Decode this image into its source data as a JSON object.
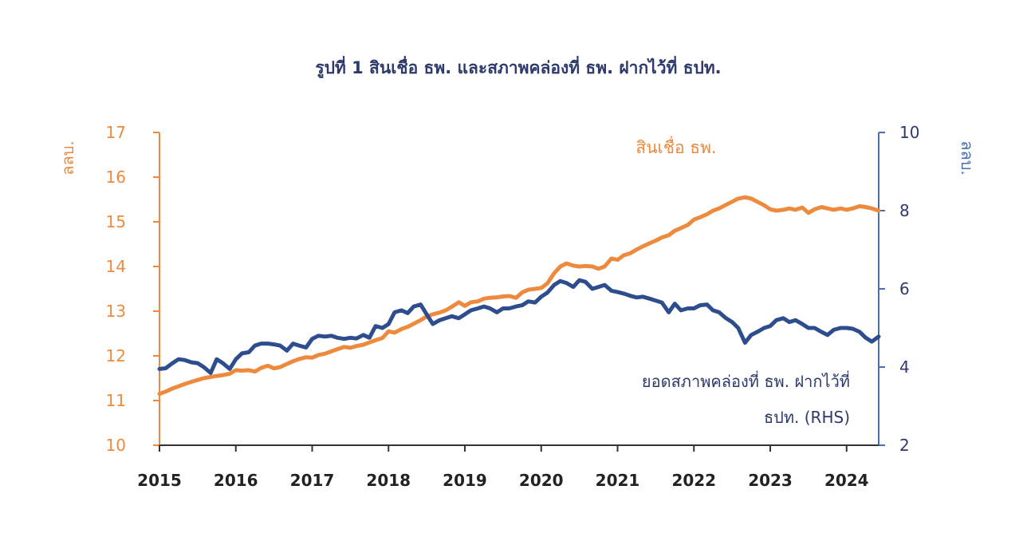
{
  "chart_data": {
    "type": "line",
    "title": "รูปที่ 1 สินเชื่อ ธพ. และสภาพคล่องที่ ธพ. ฝากไว้ที่ ธปท.",
    "y_left": {
      "label": "ลลบ.",
      "ticks": [
        "10",
        "11",
        "12",
        "13",
        "14",
        "15",
        "16",
        "17"
      ],
      "range": [
        10,
        17
      ]
    },
    "y_right": {
      "label": "ลลบ.",
      "ticks": [
        "2",
        "4",
        "6",
        "8",
        "10"
      ],
      "range": [
        2,
        10
      ]
    },
    "x": {
      "ticks": [
        "2015",
        "2016",
        "2017",
        "2018",
        "2019",
        "2020",
        "2021",
        "2022",
        "2023",
        "2024"
      ],
      "range": [
        2015,
        2024.42
      ]
    },
    "annotations": {
      "orange": "สินเชื่อ ธพ.",
      "blue_line1": "ยอดสภาพคล่องที่ ธพ. ฝากไว้ที่",
      "blue_line2": "ธปท. (RHS)"
    },
    "colors": {
      "orange": "#ed8a3d",
      "blue": "#2e4d8f",
      "axis_left": "#ed8a3d",
      "axis_right": "#4a6fb0"
    },
    "series": [
      {
        "axis": "left",
        "color": "#ed8a3d",
        "points": [
          [
            2015.0,
            11.15
          ],
          [
            2015.08,
            11.2
          ],
          [
            2015.17,
            11.27
          ],
          [
            2015.25,
            11.32
          ],
          [
            2015.33,
            11.37
          ],
          [
            2015.42,
            11.42
          ],
          [
            2015.5,
            11.46
          ],
          [
            2015.58,
            11.5
          ],
          [
            2015.67,
            11.53
          ],
          [
            2015.75,
            11.55
          ],
          [
            2015.83,
            11.57
          ],
          [
            2015.92,
            11.6
          ],
          [
            2016.0,
            11.68
          ],
          [
            2016.08,
            11.67
          ],
          [
            2016.17,
            11.68
          ],
          [
            2016.25,
            11.65
          ],
          [
            2016.33,
            11.73
          ],
          [
            2016.42,
            11.78
          ],
          [
            2016.5,
            11.72
          ],
          [
            2016.58,
            11.75
          ],
          [
            2016.67,
            11.82
          ],
          [
            2016.75,
            11.88
          ],
          [
            2016.83,
            11.93
          ],
          [
            2016.92,
            11.97
          ],
          [
            2017.0,
            11.96
          ],
          [
            2017.08,
            12.02
          ],
          [
            2017.17,
            12.05
          ],
          [
            2017.25,
            12.1
          ],
          [
            2017.33,
            12.15
          ],
          [
            2017.42,
            12.2
          ],
          [
            2017.5,
            12.18
          ],
          [
            2017.58,
            12.22
          ],
          [
            2017.67,
            12.25
          ],
          [
            2017.75,
            12.3
          ],
          [
            2017.83,
            12.35
          ],
          [
            2017.92,
            12.4
          ],
          [
            2018.0,
            12.55
          ],
          [
            2018.08,
            12.52
          ],
          [
            2018.17,
            12.6
          ],
          [
            2018.25,
            12.65
          ],
          [
            2018.33,
            12.72
          ],
          [
            2018.42,
            12.8
          ],
          [
            2018.5,
            12.88
          ],
          [
            2018.58,
            12.93
          ],
          [
            2018.67,
            12.97
          ],
          [
            2018.75,
            13.02
          ],
          [
            2018.83,
            13.1
          ],
          [
            2018.92,
            13.2
          ],
          [
            2019.0,
            13.12
          ],
          [
            2019.08,
            13.2
          ],
          [
            2019.17,
            13.22
          ],
          [
            2019.25,
            13.28
          ],
          [
            2019.33,
            13.3
          ],
          [
            2019.42,
            13.31
          ],
          [
            2019.5,
            13.33
          ],
          [
            2019.58,
            13.34
          ],
          [
            2019.67,
            13.3
          ],
          [
            2019.75,
            13.42
          ],
          [
            2019.83,
            13.48
          ],
          [
            2019.92,
            13.5
          ],
          [
            2020.0,
            13.52
          ],
          [
            2020.08,
            13.62
          ],
          [
            2020.17,
            13.85
          ],
          [
            2020.25,
            14.0
          ],
          [
            2020.33,
            14.07
          ],
          [
            2020.42,
            14.02
          ],
          [
            2020.5,
            14.0
          ],
          [
            2020.58,
            14.01
          ],
          [
            2020.67,
            14.0
          ],
          [
            2020.75,
            13.95
          ],
          [
            2020.83,
            14.0
          ],
          [
            2020.92,
            14.18
          ],
          [
            2021.0,
            14.15
          ],
          [
            2021.08,
            14.25
          ],
          [
            2021.17,
            14.3
          ],
          [
            2021.25,
            14.38
          ],
          [
            2021.33,
            14.45
          ],
          [
            2021.42,
            14.52
          ],
          [
            2021.5,
            14.58
          ],
          [
            2021.58,
            14.65
          ],
          [
            2021.67,
            14.7
          ],
          [
            2021.75,
            14.8
          ],
          [
            2021.83,
            14.86
          ],
          [
            2021.92,
            14.93
          ],
          [
            2022.0,
            15.05
          ],
          [
            2022.08,
            15.1
          ],
          [
            2022.17,
            15.17
          ],
          [
            2022.25,
            15.25
          ],
          [
            2022.33,
            15.3
          ],
          [
            2022.42,
            15.38
          ],
          [
            2022.5,
            15.45
          ],
          [
            2022.58,
            15.52
          ],
          [
            2022.67,
            15.55
          ],
          [
            2022.75,
            15.52
          ],
          [
            2022.83,
            15.45
          ],
          [
            2022.92,
            15.37
          ],
          [
            2023.0,
            15.28
          ],
          [
            2023.08,
            15.25
          ],
          [
            2023.17,
            15.27
          ],
          [
            2023.25,
            15.3
          ],
          [
            2023.33,
            15.27
          ],
          [
            2023.42,
            15.32
          ],
          [
            2023.5,
            15.2
          ],
          [
            2023.58,
            15.28
          ],
          [
            2023.67,
            15.33
          ],
          [
            2023.75,
            15.3
          ],
          [
            2023.83,
            15.27
          ],
          [
            2023.92,
            15.3
          ],
          [
            2024.0,
            15.27
          ],
          [
            2024.08,
            15.3
          ],
          [
            2024.17,
            15.35
          ],
          [
            2024.25,
            15.33
          ],
          [
            2024.33,
            15.3
          ],
          [
            2024.42,
            15.25
          ]
        ]
      },
      {
        "axis": "right",
        "color": "#2e4d8f",
        "points": [
          [
            2015.0,
            3.95
          ],
          [
            2015.08,
            3.97
          ],
          [
            2015.17,
            4.1
          ],
          [
            2015.25,
            4.2
          ],
          [
            2015.33,
            4.18
          ],
          [
            2015.42,
            4.12
          ],
          [
            2015.5,
            4.1
          ],
          [
            2015.58,
            4.0
          ],
          [
            2015.67,
            3.85
          ],
          [
            2015.75,
            4.2
          ],
          [
            2015.83,
            4.1
          ],
          [
            2015.92,
            3.95
          ],
          [
            2016.0,
            4.2
          ],
          [
            2016.08,
            4.35
          ],
          [
            2016.17,
            4.38
          ],
          [
            2016.25,
            4.55
          ],
          [
            2016.33,
            4.6
          ],
          [
            2016.42,
            4.6
          ],
          [
            2016.5,
            4.58
          ],
          [
            2016.58,
            4.55
          ],
          [
            2016.67,
            4.42
          ],
          [
            2016.75,
            4.6
          ],
          [
            2016.83,
            4.55
          ],
          [
            2016.92,
            4.5
          ],
          [
            2017.0,
            4.72
          ],
          [
            2017.08,
            4.8
          ],
          [
            2017.17,
            4.78
          ],
          [
            2017.25,
            4.8
          ],
          [
            2017.33,
            4.75
          ],
          [
            2017.42,
            4.72
          ],
          [
            2017.5,
            4.75
          ],
          [
            2017.58,
            4.73
          ],
          [
            2017.67,
            4.82
          ],
          [
            2017.75,
            4.75
          ],
          [
            2017.83,
            5.05
          ],
          [
            2017.92,
            5.0
          ],
          [
            2018.0,
            5.1
          ],
          [
            2018.08,
            5.4
          ],
          [
            2018.17,
            5.45
          ],
          [
            2018.25,
            5.38
          ],
          [
            2018.33,
            5.55
          ],
          [
            2018.42,
            5.6
          ],
          [
            2018.5,
            5.35
          ],
          [
            2018.58,
            5.1
          ],
          [
            2018.67,
            5.2
          ],
          [
            2018.75,
            5.25
          ],
          [
            2018.83,
            5.3
          ],
          [
            2018.92,
            5.25
          ],
          [
            2019.0,
            5.35
          ],
          [
            2019.08,
            5.45
          ],
          [
            2019.17,
            5.5
          ],
          [
            2019.25,
            5.55
          ],
          [
            2019.33,
            5.5
          ],
          [
            2019.42,
            5.4
          ],
          [
            2019.5,
            5.5
          ],
          [
            2019.58,
            5.5
          ],
          [
            2019.67,
            5.55
          ],
          [
            2019.75,
            5.58
          ],
          [
            2019.83,
            5.68
          ],
          [
            2019.92,
            5.65
          ],
          [
            2020.0,
            5.8
          ],
          [
            2020.08,
            5.9
          ],
          [
            2020.17,
            6.1
          ],
          [
            2020.25,
            6.2
          ],
          [
            2020.33,
            6.15
          ],
          [
            2020.42,
            6.05
          ],
          [
            2020.5,
            6.22
          ],
          [
            2020.58,
            6.18
          ],
          [
            2020.67,
            6.0
          ],
          [
            2020.75,
            6.05
          ],
          [
            2020.83,
            6.1
          ],
          [
            2020.92,
            5.95
          ],
          [
            2021.0,
            5.92
          ],
          [
            2021.08,
            5.88
          ],
          [
            2021.17,
            5.82
          ],
          [
            2021.25,
            5.78
          ],
          [
            2021.33,
            5.8
          ],
          [
            2021.42,
            5.75
          ],
          [
            2021.5,
            5.7
          ],
          [
            2021.58,
            5.65
          ],
          [
            2021.67,
            5.4
          ],
          [
            2021.75,
            5.62
          ],
          [
            2021.83,
            5.45
          ],
          [
            2021.92,
            5.5
          ],
          [
            2022.0,
            5.5
          ],
          [
            2022.08,
            5.58
          ],
          [
            2022.17,
            5.6
          ],
          [
            2022.25,
            5.45
          ],
          [
            2022.33,
            5.4
          ],
          [
            2022.42,
            5.25
          ],
          [
            2022.5,
            5.15
          ],
          [
            2022.58,
            5.0
          ],
          [
            2022.67,
            4.62
          ],
          [
            2022.75,
            4.82
          ],
          [
            2022.83,
            4.9
          ],
          [
            2022.92,
            5.0
          ],
          [
            2023.0,
            5.05
          ],
          [
            2023.08,
            5.2
          ],
          [
            2023.17,
            5.25
          ],
          [
            2023.25,
            5.15
          ],
          [
            2023.33,
            5.2
          ],
          [
            2023.42,
            5.1
          ],
          [
            2023.5,
            5.0
          ],
          [
            2023.58,
            5.0
          ],
          [
            2023.67,
            4.9
          ],
          [
            2023.75,
            4.82
          ],
          [
            2023.83,
            4.95
          ],
          [
            2023.92,
            5.0
          ],
          [
            2024.0,
            5.0
          ],
          [
            2024.08,
            4.98
          ],
          [
            2024.17,
            4.9
          ],
          [
            2024.25,
            4.75
          ],
          [
            2024.33,
            4.65
          ],
          [
            2024.42,
            4.78
          ]
        ]
      }
    ]
  }
}
